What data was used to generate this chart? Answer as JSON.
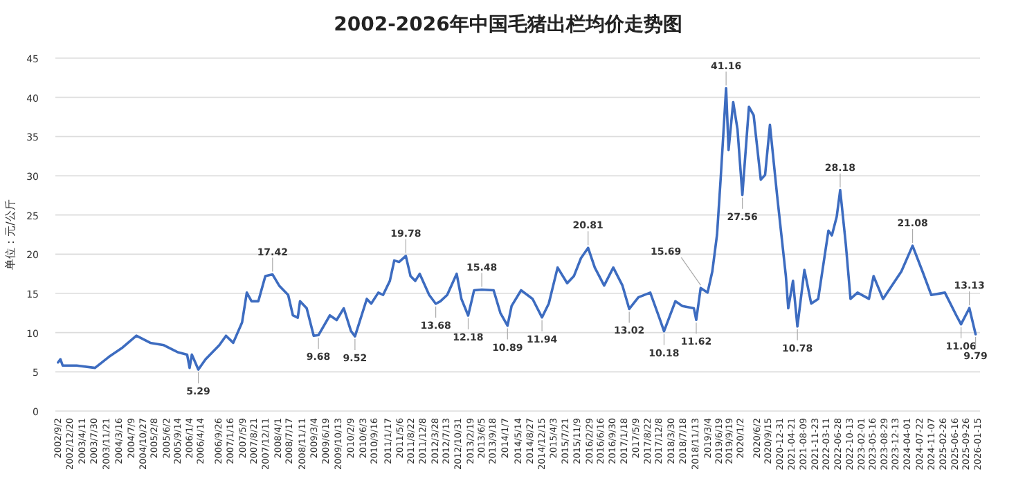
{
  "chart_data": {
    "type": "line",
    "title": "2002-2026年中国毛猪出栏均价走势图",
    "ylabel": "单位：元/公斤",
    "x": [
      "2002-09-02",
      "2002-09-24",
      "2002-10-15",
      "2003-02-21",
      "2003-08-11",
      "2003-12-17",
      "2004-04-23",
      "2004-08-29",
      "2005-01-05",
      "2005-05-11",
      "2005-09-17",
      "2005-12-13",
      "2006-01-05",
      "2006-01-26",
      "2006-03-27",
      "2006-06-02",
      "2006-10-08",
      "2006-12-09",
      "2007-02-14",
      "2007-05-07",
      "2007-06-20",
      "2007-08-03",
      "2007-10-05",
      "2007-12-09",
      "2008-02-14",
      "2008-04-15",
      "2008-07-08",
      "2008-08-21",
      "2008-10-05",
      "2008-10-26",
      "2008-12-27",
      "2009-03-02",
      "2009-04-15",
      "2009-07-30",
      "2009-10-01",
      "2009-12-06",
      "2010-02-11",
      "2010-03-20",
      "2010-07-08",
      "2010-08-18",
      "2010-10-23",
      "2010-12-06",
      "2011-02-07",
      "2011-03-20",
      "2011-05-03",
      "2011-07-05",
      "2011-08-18",
      "2011-10-01",
      "2011-11-11",
      "2012-02-07",
      "2012-04-08",
      "2012-05-21",
      "2012-07-23",
      "2012-10-19",
      "2012-12-02",
      "2013-02-03",
      "2013-03-30",
      "2013-06-09",
      "2013-09-27",
      "2013-11-29",
      "2014-02-03",
      "2014-03-13",
      "2014-06-09",
      "2014-09-24",
      "2014-12-20",
      "2015-02-21",
      "2015-05-14",
      "2015-08-11",
      "2015-10-12",
      "2015-12-17",
      "2016-02-21",
      "2016-04-23",
      "2016-07-19",
      "2016-10-12",
      "2017-01-05",
      "2017-03-09",
      "2017-06-02",
      "2017-09-20",
      "2017-12-13",
      "2018-01-26",
      "2018-05-11",
      "2018-07-15",
      "2018-10-30",
      "2018-11-21",
      "2019-01-01",
      "2019-03-06",
      "2019-04-19",
      "2019-06-02",
      "2019-07-05",
      "2019-08-25",
      "2019-09-17",
      "2019-10-30",
      "2019-12-09",
      "2020-01-23",
      "2020-03-24",
      "2020-05-07",
      "2020-07-12",
      "2020-08-21",
      "2020-10-05",
      "2020-12-09",
      "2021-01-19",
      "2021-03-02",
      "2021-03-24",
      "2021-05-07",
      "2021-06-17",
      "2021-08-21",
      "2021-10-23",
      "2021-12-27",
      "2022-04-01",
      "2022-05-03",
      "2022-06-17",
      "2022-07-19",
      "2022-09-09",
      "2022-10-23",
      "2022-12-27",
      "2023-04-12",
      "2023-05-25",
      "2023-08-21",
      "2023-11-11",
      "2024-02-07",
      "2024-05-21",
      "2024-08-21",
      "2024-11-11",
      "2025-03-17",
      "2025-07-01",
      "2025-08-14",
      "2025-10-30",
      "2025-12-27"
    ],
    "series": [
      {
        "color": "#3d6cc0",
        "values": [
          6.2,
          6.6,
          5.8,
          5.8,
          5.5,
          6.9,
          8.1,
          9.6,
          8.7,
          8.4,
          7.5,
          7.2,
          5.5,
          7.2,
          5.29,
          6.6,
          8.4,
          9.6,
          8.7,
          11.3,
          15.1,
          14.0,
          14.0,
          17.2,
          17.42,
          16.0,
          14.8,
          12.2,
          11.9,
          14.0,
          13.1,
          9.6,
          9.68,
          12.2,
          11.6,
          13.1,
          10.2,
          9.52,
          14.3,
          13.7,
          15.1,
          14.8,
          16.6,
          19.2,
          19.0,
          19.78,
          17.2,
          16.6,
          17.5,
          14.8,
          13.68,
          14.0,
          14.8,
          17.5,
          14.3,
          12.18,
          15.4,
          15.48,
          15.4,
          12.5,
          10.89,
          13.4,
          15.4,
          14.3,
          11.94,
          13.7,
          18.3,
          16.3,
          17.2,
          19.5,
          20.81,
          18.3,
          16.0,
          18.3,
          16.0,
          13.02,
          14.5,
          15.1,
          11.9,
          10.18,
          14.0,
          13.4,
          13.1,
          11.62,
          15.69,
          15.1,
          17.8,
          22.5,
          29.5,
          41.16,
          33.3,
          39.4,
          35.9,
          27.56,
          38.8,
          37.7,
          29.5,
          30.1,
          36.5,
          27.7,
          22.5,
          17.2,
          13.1,
          16.6,
          10.78,
          18.0,
          13.7,
          14.3,
          23.0,
          22.4,
          24.8,
          28.18,
          21.3,
          14.3,
          15.1,
          14.3,
          17.2,
          14.3,
          16.0,
          17.8,
          21.08,
          17.8,
          14.8,
          15.1,
          12.2,
          11.06,
          13.13,
          9.79
        ]
      }
    ],
    "annotations": [
      {
        "text": "5.29",
        "x": "2006-03-27",
        "y": 5.29
      },
      {
        "text": "17.42",
        "x": "2008-02-14",
        "y": 17.42
      },
      {
        "text": "9.68",
        "x": "2009-04-15",
        "y": 9.68
      },
      {
        "text": "9.52",
        "x": "2010-03-20",
        "y": 9.52
      },
      {
        "text": "19.78",
        "x": "2011-07-05",
        "y": 19.78
      },
      {
        "text": "13.68",
        "x": "2012-04-08",
        "y": 13.68
      },
      {
        "text": "12.18",
        "x": "2013-02-03",
        "y": 12.18
      },
      {
        "text": "15.48",
        "x": "2013-06-09",
        "y": 15.48
      },
      {
        "text": "10.89",
        "x": "2014-02-03",
        "y": 10.89
      },
      {
        "text": "11.94",
        "x": "2014-12-20",
        "y": 11.94
      },
      {
        "text": "20.81",
        "x": "2016-02-21",
        "y": 20.81
      },
      {
        "text": "13.02",
        "x": "2017-03-09",
        "y": 13.02
      },
      {
        "text": "10.18",
        "x": "2018-01-26",
        "y": 10.18
      },
      {
        "text": "11.62",
        "x": "2018-11-21",
        "y": 11.62
      },
      {
        "text": "15.69",
        "x": "2019-01-01",
        "y": 15.69
      },
      {
        "text": "41.16",
        "x": "2019-08-25",
        "y": 41.16
      },
      {
        "text": "27.56",
        "x": "2020-01-23",
        "y": 27.56
      },
      {
        "text": "10.78",
        "x": "2021-06-17",
        "y": 10.78
      },
      {
        "text": "28.18",
        "x": "2022-07-19",
        "y": 28.18
      },
      {
        "text": "21.08",
        "x": "2024-05-21",
        "y": 21.08
      },
      {
        "text": "11.06",
        "x": "2025-08-14",
        "y": 11.06
      },
      {
        "text": "13.13",
        "x": "2025-10-30",
        "y": 13.13
      },
      {
        "text": "9.79",
        "x": "2025-12-27",
        "y": 9.79
      }
    ],
    "xlim": [
      "2002-08-08",
      "2026-02-06"
    ],
    "ylim": [
      0,
      45
    ],
    "yticks": [
      0,
      5,
      10,
      15,
      20,
      25,
      30,
      35,
      40,
      45
    ],
    "grid": "y",
    "marker": "none",
    "line_style": "solid",
    "xticks": [
      {
        "value": "2002-09-02",
        "label": "2002/9/2"
      },
      {
        "value": "2002-12-20",
        "label": "2002/12/20"
      },
      {
        "value": "2003-04-11",
        "label": "2003/4/11"
      },
      {
        "value": "2003-07-30",
        "label": "2003/7/30"
      },
      {
        "value": "2003-11-21",
        "label": "2003/11/21"
      },
      {
        "value": "2004-03-16",
        "label": "2004/3/16"
      },
      {
        "value": "2004-07-09",
        "label": "2004/7/9"
      },
      {
        "value": "2004-10-27",
        "label": "2004/10/27"
      },
      {
        "value": "2005-02-08",
        "label": "2005/2/8"
      },
      {
        "value": "2005-06-02",
        "label": "2005/6/2"
      },
      {
        "value": "2005-09-14",
        "label": "2005/9/14"
      },
      {
        "value": "2006-01-04",
        "label": "2006/1/4"
      },
      {
        "value": "2006-04-14",
        "label": "2006/4/14"
      },
      {
        "value": "2006-09-26",
        "label": "2006/9/26"
      },
      {
        "value": "2007-01-16",
        "label": "2007/1/16"
      },
      {
        "value": "2007-05-09",
        "label": "2007/5/9"
      },
      {
        "value": "2007-08-21",
        "label": "2007/8/21"
      },
      {
        "value": "2007-12-11",
        "label": "2007/12/11"
      },
      {
        "value": "2008-04-01",
        "label": "2008/4/1"
      },
      {
        "value": "2008-07-17",
        "label": "2008/7/17"
      },
      {
        "value": "2008-11-11",
        "label": "2008/11/11"
      },
      {
        "value": "2009-03-04",
        "label": "2009/3/4"
      },
      {
        "value": "2009-06-19",
        "label": "2009/6/19"
      },
      {
        "value": "2009-10-13",
        "label": "2009/10/13"
      },
      {
        "value": "2010-02-09",
        "label": "2010/2/9"
      },
      {
        "value": "2010-06-03",
        "label": "2010/6/3"
      },
      {
        "value": "2010-09-16",
        "label": "2010/9/16"
      },
      {
        "value": "2011-01-17",
        "label": "2011/1/17"
      },
      {
        "value": "2011-05-06",
        "label": "2011/5/6"
      },
      {
        "value": "2011-08-22",
        "label": "2011/8/22"
      },
      {
        "value": "2011-12-08",
        "label": "2011/12/8"
      },
      {
        "value": "2012-03-28",
        "label": "2012/3/28"
      },
      {
        "value": "2012-07-13",
        "label": "2012/7/13"
      },
      {
        "value": "2012-10-31",
        "label": "2012/10/31"
      },
      {
        "value": "2013-02-19",
        "label": "2013/2/19"
      },
      {
        "value": "2013-06-05",
        "label": "2013/6/5"
      },
      {
        "value": "2013-09-18",
        "label": "2013/9/18"
      },
      {
        "value": "2014-01-07",
        "label": "2014/1/7"
      },
      {
        "value": "2014-05-14",
        "label": "2014/5/14"
      },
      {
        "value": "2014-08-27",
        "label": "2014/8/27"
      },
      {
        "value": "2014-12-15",
        "label": "2014/12/15"
      },
      {
        "value": "2015-04-03",
        "label": "2015/4/3"
      },
      {
        "value": "2015-07-21",
        "label": "2015/7/21"
      },
      {
        "value": "2015-11-09",
        "label": "2015/11/9"
      },
      {
        "value": "2016-02-29",
        "label": "2016/2/29"
      },
      {
        "value": "2016-06-16",
        "label": "2016/6/16"
      },
      {
        "value": "2016-09-30",
        "label": "2016/9/30"
      },
      {
        "value": "2017-01-18",
        "label": "2017/1/18"
      },
      {
        "value": "2017-05-09",
        "label": "2017/5/9"
      },
      {
        "value": "2017-08-22",
        "label": "2017/8/22"
      },
      {
        "value": "2017-12-08",
        "label": "2017/12/8"
      },
      {
        "value": "2018-03-30",
        "label": "2018/3/30"
      },
      {
        "value": "2018-07-18",
        "label": "2018/7/18"
      },
      {
        "value": "2018-11-13",
        "label": "2018/11/13"
      },
      {
        "value": "2019-03-04",
        "label": "2019/3/4"
      },
      {
        "value": "2019-06-19",
        "label": "2019/6/19"
      },
      {
        "value": "2019-09-19",
        "label": "2019/9/19"
      },
      {
        "value": "2020-01-02",
        "label": "2020/1/2"
      },
      {
        "value": "2020-06-02",
        "label": "2020/6/2"
      },
      {
        "value": "2020-09-15",
        "label": "2020/9/15"
      },
      {
        "value": "2020-12-31",
        "label": "2020-12-31"
      },
      {
        "value": "2021-04-21",
        "label": "2021-04-21"
      },
      {
        "value": "2021-08-09",
        "label": "2021-08-09"
      },
      {
        "value": "2021-11-23",
        "label": "2021-11-23"
      },
      {
        "value": "2022-03-11",
        "label": "2022-03-11"
      },
      {
        "value": "2022-06-28",
        "label": "2022-06-28"
      },
      {
        "value": "2022-10-13",
        "label": "2022-10-13"
      },
      {
        "value": "2023-02-01",
        "label": "2023-02-01"
      },
      {
        "value": "2023-05-16",
        "label": "2023-05-16"
      },
      {
        "value": "2023-08-29",
        "label": "2023-08-29"
      },
      {
        "value": "2023-12-13",
        "label": "2023-12-13"
      },
      {
        "value": "2024-04-01",
        "label": "2024-04-01"
      },
      {
        "value": "2024-07-22",
        "label": "2024-07-22"
      },
      {
        "value": "2024-11-07",
        "label": "2024-11-07"
      },
      {
        "value": "2025-02-26",
        "label": "2025-02-26"
      },
      {
        "value": "2025-06-16",
        "label": "2025-06-16"
      },
      {
        "value": "2025-09-26",
        "label": "2025-09-26"
      },
      {
        "value": "2026-01-15",
        "label": "2026-01-15"
      }
    ]
  }
}
